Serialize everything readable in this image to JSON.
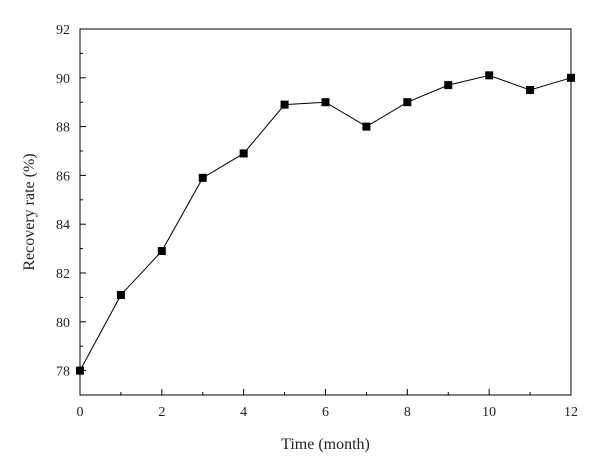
{
  "chart_data": {
    "type": "line",
    "xlabel": "Time (month)",
    "ylabel": "Recovery rate (%)",
    "xlim": [
      0,
      12
    ],
    "ylim": [
      77,
      92
    ],
    "x_ticks": [
      0,
      2,
      4,
      6,
      8,
      10,
      12
    ],
    "y_ticks": [
      78,
      80,
      82,
      84,
      86,
      88,
      90,
      92
    ],
    "grid": false,
    "marker": "square",
    "line_color": "#000000",
    "series": [
      {
        "x": [
          0,
          1,
          2,
          3,
          4,
          5,
          6,
          7,
          8,
          9,
          10,
          11,
          12
        ],
        "values": [
          78.0,
          81.1,
          82.9,
          85.9,
          86.9,
          88.9,
          89.0,
          88.0,
          89.0,
          89.7,
          90.1,
          89.5,
          90.0
        ]
      }
    ]
  }
}
